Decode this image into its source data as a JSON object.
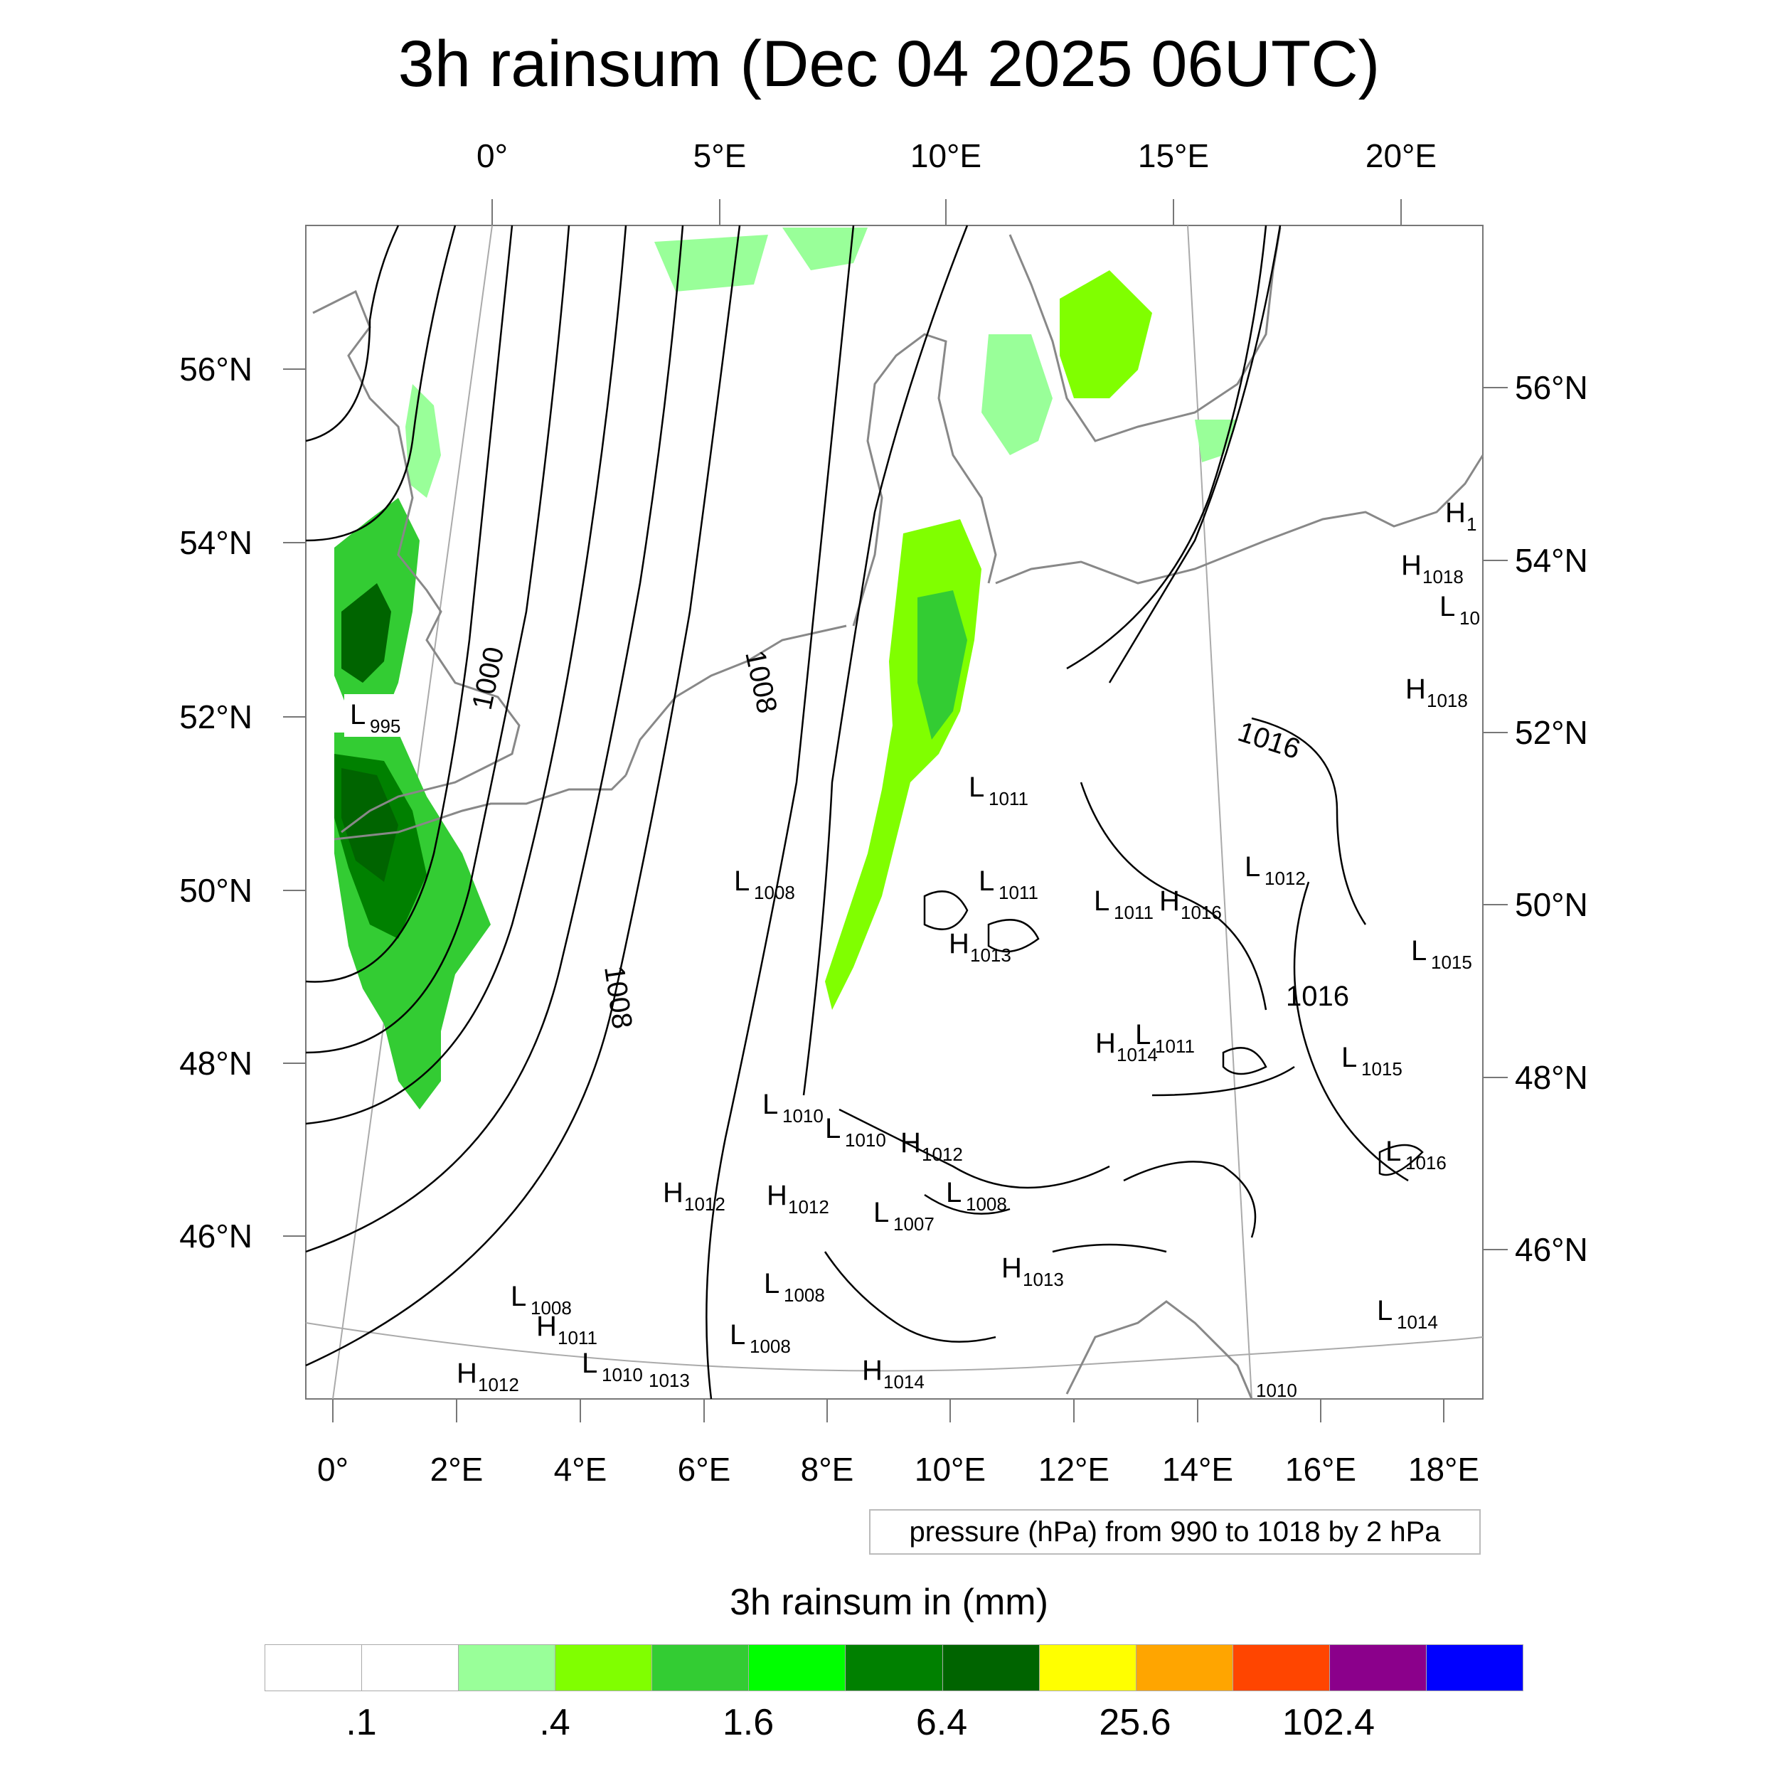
{
  "title": "3h rainsum (Dec 04 2025 06UTC)",
  "note": "pressure (hPa) from 990 to 1018 by 2 hPa",
  "colorbar": {
    "title": "3h rainsum in (mm)",
    "colors": [
      "#ffffff",
      "#ffffff",
      "#99ff99",
      "#80ff00",
      "#33cc33",
      "#00ff00",
      "#008000",
      "#006400",
      "#ffff00",
      "#ffa500",
      "#ff4500",
      "#8b008b",
      "#0000ff"
    ],
    "labels": [
      ".1",
      ".4",
      "1.6",
      "6.4",
      "25.6",
      "102.4"
    ]
  },
  "axes": {
    "top": [
      "0°",
      "5°E",
      "10°E",
      "15°E",
      "20°E"
    ],
    "bottom": [
      "0°",
      "2°E",
      "4°E",
      "6°E",
      "8°E",
      "10°E",
      "12°E",
      "14°E",
      "16°E",
      "18°E"
    ],
    "left": [
      "56°N",
      "54°N",
      "52°N",
      "50°N",
      "48°N",
      "46°N"
    ],
    "right": [
      "56°N",
      "54°N",
      "52°N",
      "50°N",
      "48°N",
      "46°N"
    ]
  },
  "contour_labels": [
    "1000",
    "1008",
    "1008",
    "1016",
    "1016"
  ],
  "pressure_centers": [
    {
      "kind": "L",
      "value": "995"
    },
    {
      "kind": "L",
      "value": "1011"
    },
    {
      "kind": "L",
      "value": "1008"
    },
    {
      "kind": "L",
      "value": "1011"
    },
    {
      "kind": "L",
      "value": "1011"
    },
    {
      "kind": "H",
      "value": "1016"
    },
    {
      "kind": "L",
      "value": "1012"
    },
    {
      "kind": "H",
      "value": "1013"
    },
    {
      "kind": "L",
      "value": "1011"
    },
    {
      "kind": "H",
      "value": "1014"
    },
    {
      "kind": "L",
      "value": "1015"
    },
    {
      "kind": "L",
      "value": "1015"
    },
    {
      "kind": "L",
      "value": "1010"
    },
    {
      "kind": "L",
      "value": "1010"
    },
    {
      "kind": "H",
      "value": "1012"
    },
    {
      "kind": "H",
      "value": "1012"
    },
    {
      "kind": "H",
      "value": "1012"
    },
    {
      "kind": "L",
      "value": "1007"
    },
    {
      "kind": "L",
      "value": "1008"
    },
    {
      "kind": "L",
      "value": "1016"
    },
    {
      "kind": "L",
      "value": "1008"
    },
    {
      "kind": "H",
      "value": "1013"
    },
    {
      "kind": "L",
      "value": "1008"
    },
    {
      "kind": "H",
      "value": "1011"
    },
    {
      "kind": "L",
      "value": "1008"
    },
    {
      "kind": "L",
      "value": "1014"
    },
    {
      "kind": "H",
      "value": "1012"
    },
    {
      "kind": "L",
      "value": "1010"
    },
    {
      "kind": "H",
      "value": "1014"
    },
    {
      "kind": "H",
      "value": "1018"
    },
    {
      "kind": "H",
      "value": "1018"
    },
    {
      "kind": "H",
      "value": "1"
    },
    {
      "kind": "L",
      "value": "10"
    }
  ],
  "misc_labels": [
    "1013",
    "1010"
  ]
}
